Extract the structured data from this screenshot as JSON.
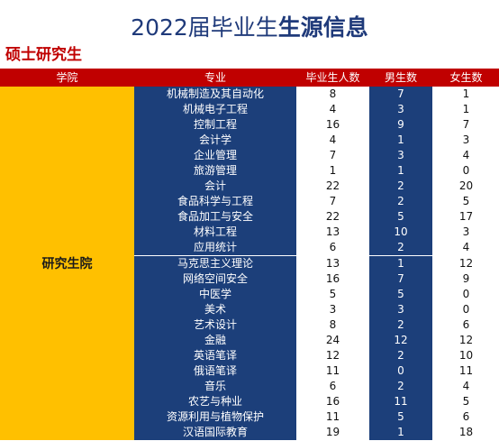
{
  "title": {
    "normal": "2022届毕业生",
    "bold": "生源信息"
  },
  "subtitle": "硕士研究生",
  "headers": [
    "学院",
    "专业",
    "毕业生人数",
    "男生数",
    "女生数"
  ],
  "college": "研究生院",
  "rows": [
    {
      "major": "机械制造及其自动化",
      "grad": "8",
      "male": "7",
      "female": "1"
    },
    {
      "major": "机械电子工程",
      "grad": "4",
      "male": "3",
      "female": "1"
    },
    {
      "major": "控制工程",
      "grad": "16",
      "male": "9",
      "female": "7"
    },
    {
      "major": "会计学",
      "grad": "4",
      "male": "1",
      "female": "3"
    },
    {
      "major": "企业管理",
      "grad": "7",
      "male": "3",
      "female": "4"
    },
    {
      "major": "旅游管理",
      "grad": "1",
      "male": "1",
      "female": "0"
    },
    {
      "major": "会计",
      "grad": "22",
      "male": "2",
      "female": "20"
    },
    {
      "major": "食品科学与工程",
      "grad": "7",
      "male": "2",
      "female": "5"
    },
    {
      "major": "食品加工与安全",
      "grad": "22",
      "male": "5",
      "female": "17"
    },
    {
      "major": "材料工程",
      "grad": "13",
      "male": "10",
      "female": "3"
    },
    {
      "major": "应用统计",
      "grad": "6",
      "male": "2",
      "female": "4"
    },
    {
      "major": "马克思主义理论",
      "grad": "13",
      "male": "1",
      "female": "12"
    },
    {
      "major": "网络空间安全",
      "grad": "16",
      "male": "7",
      "female": "9"
    },
    {
      "major": "中医学",
      "grad": "5",
      "male": "5",
      "female": "0"
    },
    {
      "major": "美术",
      "grad": "3",
      "male": "3",
      "female": "0"
    },
    {
      "major": "艺术设计",
      "grad": "8",
      "male": "2",
      "female": "6"
    },
    {
      "major": "金融",
      "grad": "24",
      "male": "12",
      "female": "12"
    },
    {
      "major": "英语笔译",
      "grad": "12",
      "male": "2",
      "female": "10"
    },
    {
      "major": "俄语笔译",
      "grad": "11",
      "male": "0",
      "female": "11"
    },
    {
      "major": "音乐",
      "grad": "6",
      "male": "2",
      "female": "4"
    },
    {
      "major": "农艺与种业",
      "grad": "16",
      "male": "11",
      "female": "5"
    },
    {
      "major": "资源利用与植物保护",
      "grad": "11",
      "male": "5",
      "female": "6"
    },
    {
      "major": "汉语国际教育",
      "grad": "19",
      "male": "1",
      "female": "18"
    }
  ],
  "colors": {
    "header_bg": "#c00000",
    "navy": "#1c3f7a",
    "college_bg": "#ffc000",
    "title": "#1f3a7a",
    "subtitle": "#c00000"
  }
}
